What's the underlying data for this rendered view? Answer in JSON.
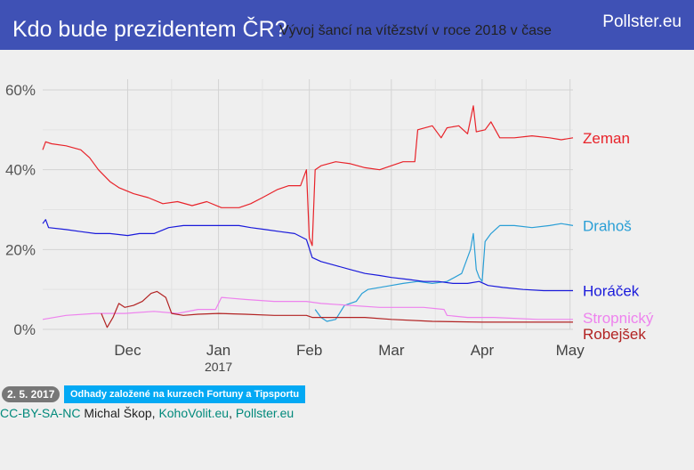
{
  "header": {
    "title": "Kdo bude prezidentem ČR?",
    "subtitle": "Vývoj šancí na vítězství v roce 2018 v čase",
    "brand": "Pollster.eu"
  },
  "footer": {
    "date": "2. 5. 2017",
    "note": "Odhady založené na kurzech Fortuny a Tipsportu",
    "license": "CC-BY-SA-NC",
    "author": "Michal Škop",
    "sep1": ", ",
    "site1": "KohoVolit.eu",
    "sep2": ", ",
    "site2": "Pollster.eu"
  },
  "chart_data": {
    "type": "line",
    "ylim": [
      0,
      60
    ],
    "y_ticks": [
      0,
      20,
      40,
      60
    ],
    "y_tick_labels": [
      "0%",
      "20%",
      "40%",
      "60%"
    ],
    "xlim": [
      "2016-11-02",
      "2017-05-02"
    ],
    "x_ticks": [
      {
        "date": "2016-12-01",
        "label": "Dec",
        "sublabel": ""
      },
      {
        "date": "2017-01-01",
        "label": "Jan",
        "sublabel": "2017"
      },
      {
        "date": "2017-02-01",
        "label": "Feb",
        "sublabel": ""
      },
      {
        "date": "2017-03-01",
        "label": "Mar",
        "sublabel": ""
      },
      {
        "date": "2017-04-01",
        "label": "Apr",
        "sublabel": ""
      },
      {
        "date": "2017-05-01",
        "label": "May",
        "sublabel": ""
      }
    ],
    "grid": true,
    "legend": "direct labels at right",
    "series": [
      {
        "name": "Zeman",
        "color": "#e8232a",
        "points": [
          [
            "2016-11-02",
            45
          ],
          [
            "2016-11-03",
            47
          ],
          [
            "2016-11-05",
            46.5
          ],
          [
            "2016-11-10",
            46
          ],
          [
            "2016-11-15",
            45
          ],
          [
            "2016-11-18",
            43
          ],
          [
            "2016-11-21",
            40
          ],
          [
            "2016-11-25",
            37
          ],
          [
            "2016-11-28",
            35.5
          ],
          [
            "2016-12-03",
            34
          ],
          [
            "2016-12-08",
            33
          ],
          [
            "2016-12-13",
            31.5
          ],
          [
            "2016-12-18",
            32
          ],
          [
            "2016-12-23",
            31
          ],
          [
            "2016-12-28",
            32
          ],
          [
            "2017-01-02",
            30.5
          ],
          [
            "2017-01-08",
            30.5
          ],
          [
            "2017-01-12",
            31.5
          ],
          [
            "2017-01-16",
            33
          ],
          [
            "2017-01-21",
            35
          ],
          [
            "2017-01-25",
            36
          ],
          [
            "2017-01-29",
            36
          ],
          [
            "2017-01-30",
            38
          ],
          [
            "2017-01-31",
            40
          ],
          [
            "2017-02-01",
            23
          ],
          [
            "2017-02-02",
            21
          ],
          [
            "2017-02-03",
            40
          ],
          [
            "2017-02-05",
            41
          ],
          [
            "2017-02-10",
            42
          ],
          [
            "2017-02-15",
            41.5
          ],
          [
            "2017-02-20",
            40.5
          ],
          [
            "2017-02-25",
            40
          ],
          [
            "2017-03-01",
            41
          ],
          [
            "2017-03-05",
            42
          ],
          [
            "2017-03-09",
            42
          ],
          [
            "2017-03-10",
            50
          ],
          [
            "2017-03-15",
            51
          ],
          [
            "2017-03-18",
            48
          ],
          [
            "2017-03-20",
            50.5
          ],
          [
            "2017-03-24",
            51
          ],
          [
            "2017-03-27",
            49
          ],
          [
            "2017-03-29",
            56
          ],
          [
            "2017-03-30",
            49.5
          ],
          [
            "2017-04-02",
            50
          ],
          [
            "2017-04-04",
            52
          ],
          [
            "2017-04-07",
            48
          ],
          [
            "2017-04-12",
            48
          ],
          [
            "2017-04-18",
            48.5
          ],
          [
            "2017-04-24",
            48
          ],
          [
            "2017-04-28",
            47.5
          ],
          [
            "2017-05-02",
            48
          ]
        ]
      },
      {
        "name": "Drahoš",
        "color": "#2a9fd6",
        "points": [
          [
            "2017-02-03",
            5
          ],
          [
            "2017-02-05",
            3
          ],
          [
            "2017-02-07",
            2
          ],
          [
            "2017-02-10",
            2.5
          ],
          [
            "2017-02-13",
            6
          ],
          [
            "2017-02-17",
            7
          ],
          [
            "2017-02-19",
            9
          ],
          [
            "2017-02-21",
            10
          ],
          [
            "2017-03-01",
            11
          ],
          [
            "2017-03-05",
            11.5
          ],
          [
            "2017-03-10",
            12
          ],
          [
            "2017-03-15",
            11.5
          ],
          [
            "2017-03-20",
            12
          ],
          [
            "2017-03-25",
            14
          ],
          [
            "2017-03-28",
            20
          ],
          [
            "2017-03-29",
            24
          ],
          [
            "2017-03-30",
            15
          ],
          [
            "2017-03-31",
            13
          ],
          [
            "2017-04-01",
            12
          ],
          [
            "2017-04-02",
            22
          ],
          [
            "2017-04-04",
            24
          ],
          [
            "2017-04-07",
            26
          ],
          [
            "2017-04-12",
            26
          ],
          [
            "2017-04-18",
            25.5
          ],
          [
            "2017-04-24",
            26
          ],
          [
            "2017-04-28",
            26.5
          ],
          [
            "2017-05-02",
            26
          ]
        ]
      },
      {
        "name": "Horáček",
        "color": "#1a1adb",
        "points": [
          [
            "2016-11-02",
            26.5
          ],
          [
            "2016-11-03",
            27.5
          ],
          [
            "2016-11-04",
            25.5
          ],
          [
            "2016-11-10",
            25
          ],
          [
            "2016-11-15",
            24.5
          ],
          [
            "2016-11-20",
            24
          ],
          [
            "2016-11-25",
            24
          ],
          [
            "2016-12-01",
            23.5
          ],
          [
            "2016-12-05",
            24
          ],
          [
            "2016-12-10",
            24
          ],
          [
            "2016-12-15",
            25.5
          ],
          [
            "2016-12-20",
            26
          ],
          [
            "2016-12-25",
            26
          ],
          [
            "2017-01-01",
            26
          ],
          [
            "2017-01-08",
            26
          ],
          [
            "2017-01-12",
            25.5
          ],
          [
            "2017-01-17",
            25
          ],
          [
            "2017-01-22",
            24.5
          ],
          [
            "2017-01-27",
            24
          ],
          [
            "2017-01-31",
            22.5
          ],
          [
            "2017-02-02",
            18
          ],
          [
            "2017-02-05",
            17
          ],
          [
            "2017-02-10",
            16
          ],
          [
            "2017-02-15",
            15
          ],
          [
            "2017-02-20",
            14
          ],
          [
            "2017-02-25",
            13.5
          ],
          [
            "2017-03-01",
            13
          ],
          [
            "2017-03-07",
            12.5
          ],
          [
            "2017-03-12",
            12
          ],
          [
            "2017-03-17",
            12
          ],
          [
            "2017-03-22",
            11.5
          ],
          [
            "2017-03-27",
            11.5
          ],
          [
            "2017-03-31",
            12
          ],
          [
            "2017-04-03",
            11
          ],
          [
            "2017-04-08",
            10.5
          ],
          [
            "2017-04-15",
            10
          ],
          [
            "2017-04-22",
            9.7
          ],
          [
            "2017-05-02",
            9.7
          ]
        ]
      },
      {
        "name": "Stropnický",
        "color": "#ee82ee",
        "points": [
          [
            "2016-11-02",
            2.5
          ],
          [
            "2016-11-10",
            3.5
          ],
          [
            "2016-11-20",
            4
          ],
          [
            "2016-11-30",
            4
          ],
          [
            "2016-12-10",
            4.5
          ],
          [
            "2016-12-18",
            4
          ],
          [
            "2016-12-25",
            5
          ],
          [
            "2016-12-31",
            5
          ],
          [
            "2017-01-02",
            8
          ],
          [
            "2017-01-10",
            7.5
          ],
          [
            "2017-01-20",
            7
          ],
          [
            "2017-01-31",
            7
          ],
          [
            "2017-02-05",
            6.5
          ],
          [
            "2017-02-15",
            6
          ],
          [
            "2017-02-25",
            5.5
          ],
          [
            "2017-03-05",
            5.5
          ],
          [
            "2017-03-12",
            5.5
          ],
          [
            "2017-03-19",
            5
          ],
          [
            "2017-03-20",
            3.5
          ],
          [
            "2017-03-27",
            3
          ],
          [
            "2017-04-05",
            3
          ],
          [
            "2017-04-20",
            2.5
          ],
          [
            "2017-05-02",
            2.5
          ]
        ]
      },
      {
        "name": "Robejšek",
        "color": "#b22222",
        "points": [
          [
            "2016-11-22",
            4
          ],
          [
            "2016-11-24",
            0.5
          ],
          [
            "2016-11-26",
            3
          ],
          [
            "2016-11-28",
            6.5
          ],
          [
            "2016-11-30",
            5.5
          ],
          [
            "2016-12-03",
            6
          ],
          [
            "2016-12-06",
            7
          ],
          [
            "2016-12-09",
            9
          ],
          [
            "2016-12-11",
            9.5
          ],
          [
            "2016-12-14",
            8
          ],
          [
            "2016-12-16",
            4
          ],
          [
            "2016-12-20",
            3.5
          ],
          [
            "2016-12-25",
            3.8
          ],
          [
            "2017-01-01",
            4
          ],
          [
            "2017-01-10",
            3.8
          ],
          [
            "2017-01-20",
            3.5
          ],
          [
            "2017-01-31",
            3.5
          ],
          [
            "2017-02-02",
            3
          ],
          [
            "2017-02-10",
            3
          ],
          [
            "2017-02-20",
            3
          ],
          [
            "2017-03-01",
            2.5
          ],
          [
            "2017-03-15",
            2
          ],
          [
            "2017-04-01",
            1.8
          ],
          [
            "2017-04-15",
            1.8
          ],
          [
            "2017-05-02",
            1.8
          ]
        ]
      }
    ]
  }
}
